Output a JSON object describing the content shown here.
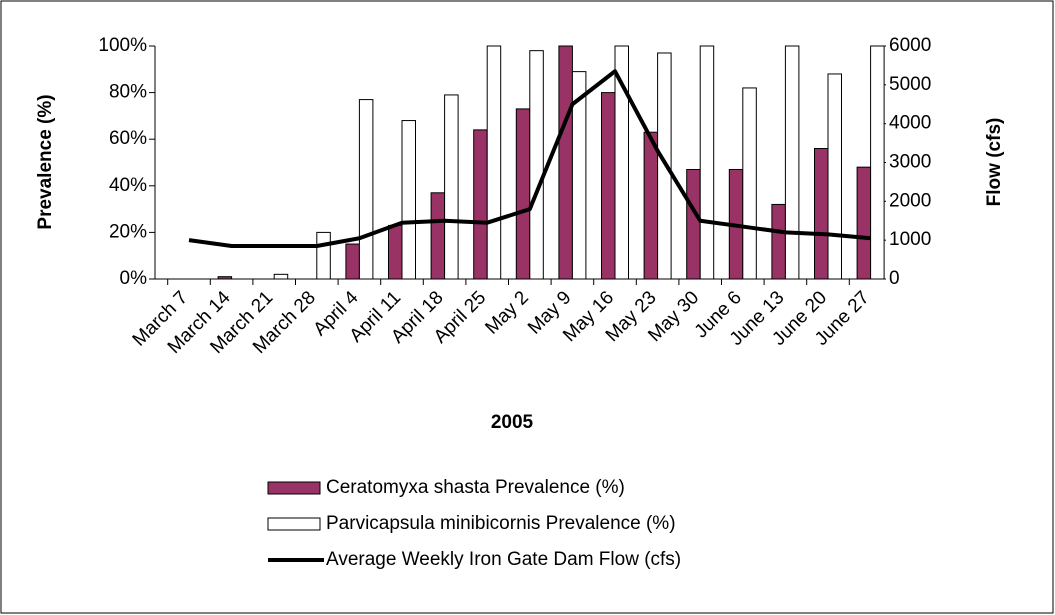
{
  "chart_data": {
    "type": "bar_line",
    "x_label": "2005",
    "y_label": "Prevalence (%)",
    "y2_label": "Flow (cfs)",
    "categories": [
      "March 7",
      "March 14",
      "March 21",
      "March 28",
      "April 4",
      "April 11",
      "April 18",
      "April 25",
      "May 2",
      "May 9",
      "May 16",
      "May 23",
      "May 30",
      "June 6",
      "June 13",
      "June 20",
      "June 27"
    ],
    "series": [
      {
        "name": "Ceratomyxa shasta Prevalence (%)",
        "type": "bar",
        "color": "#993366",
        "axis": "y",
        "values": [
          null,
          1,
          null,
          null,
          15,
          23,
          37,
          64,
          73,
          100,
          80,
          63,
          47,
          47,
          32,
          56,
          48
        ]
      },
      {
        "name": "Parvicapsula minibicornis Prevalence (%)",
        "type": "bar",
        "color": "#ffffff",
        "axis": "y",
        "values": [
          null,
          null,
          2,
          20,
          77,
          68,
          79,
          100,
          98,
          89,
          100,
          97,
          100,
          82,
          100,
          88,
          100
        ]
      },
      {
        "name": "Average Weekly Iron Gate Dam Flow (cfs)",
        "type": "line",
        "color": "#000000",
        "axis": "y2",
        "values": [
          1000,
          850,
          850,
          850,
          1050,
          1450,
          1500,
          1450,
          1800,
          4500,
          5350,
          3300,
          1500,
          1350,
          1200,
          1150,
          1050
        ]
      }
    ],
    "ylim": [
      0,
      100
    ],
    "yticks": [
      {
        "value": 0,
        "label": "0%"
      },
      {
        "value": 20,
        "label": "20%"
      },
      {
        "value": 40,
        "label": "40%"
      },
      {
        "value": 60,
        "label": "60%"
      },
      {
        "value": 80,
        "label": "80%"
      },
      {
        "value": 100,
        "label": "100%"
      }
    ],
    "y2lim": [
      0,
      6000
    ],
    "y2ticks": [
      0,
      1000,
      2000,
      3000,
      4000,
      5000,
      6000
    ]
  }
}
